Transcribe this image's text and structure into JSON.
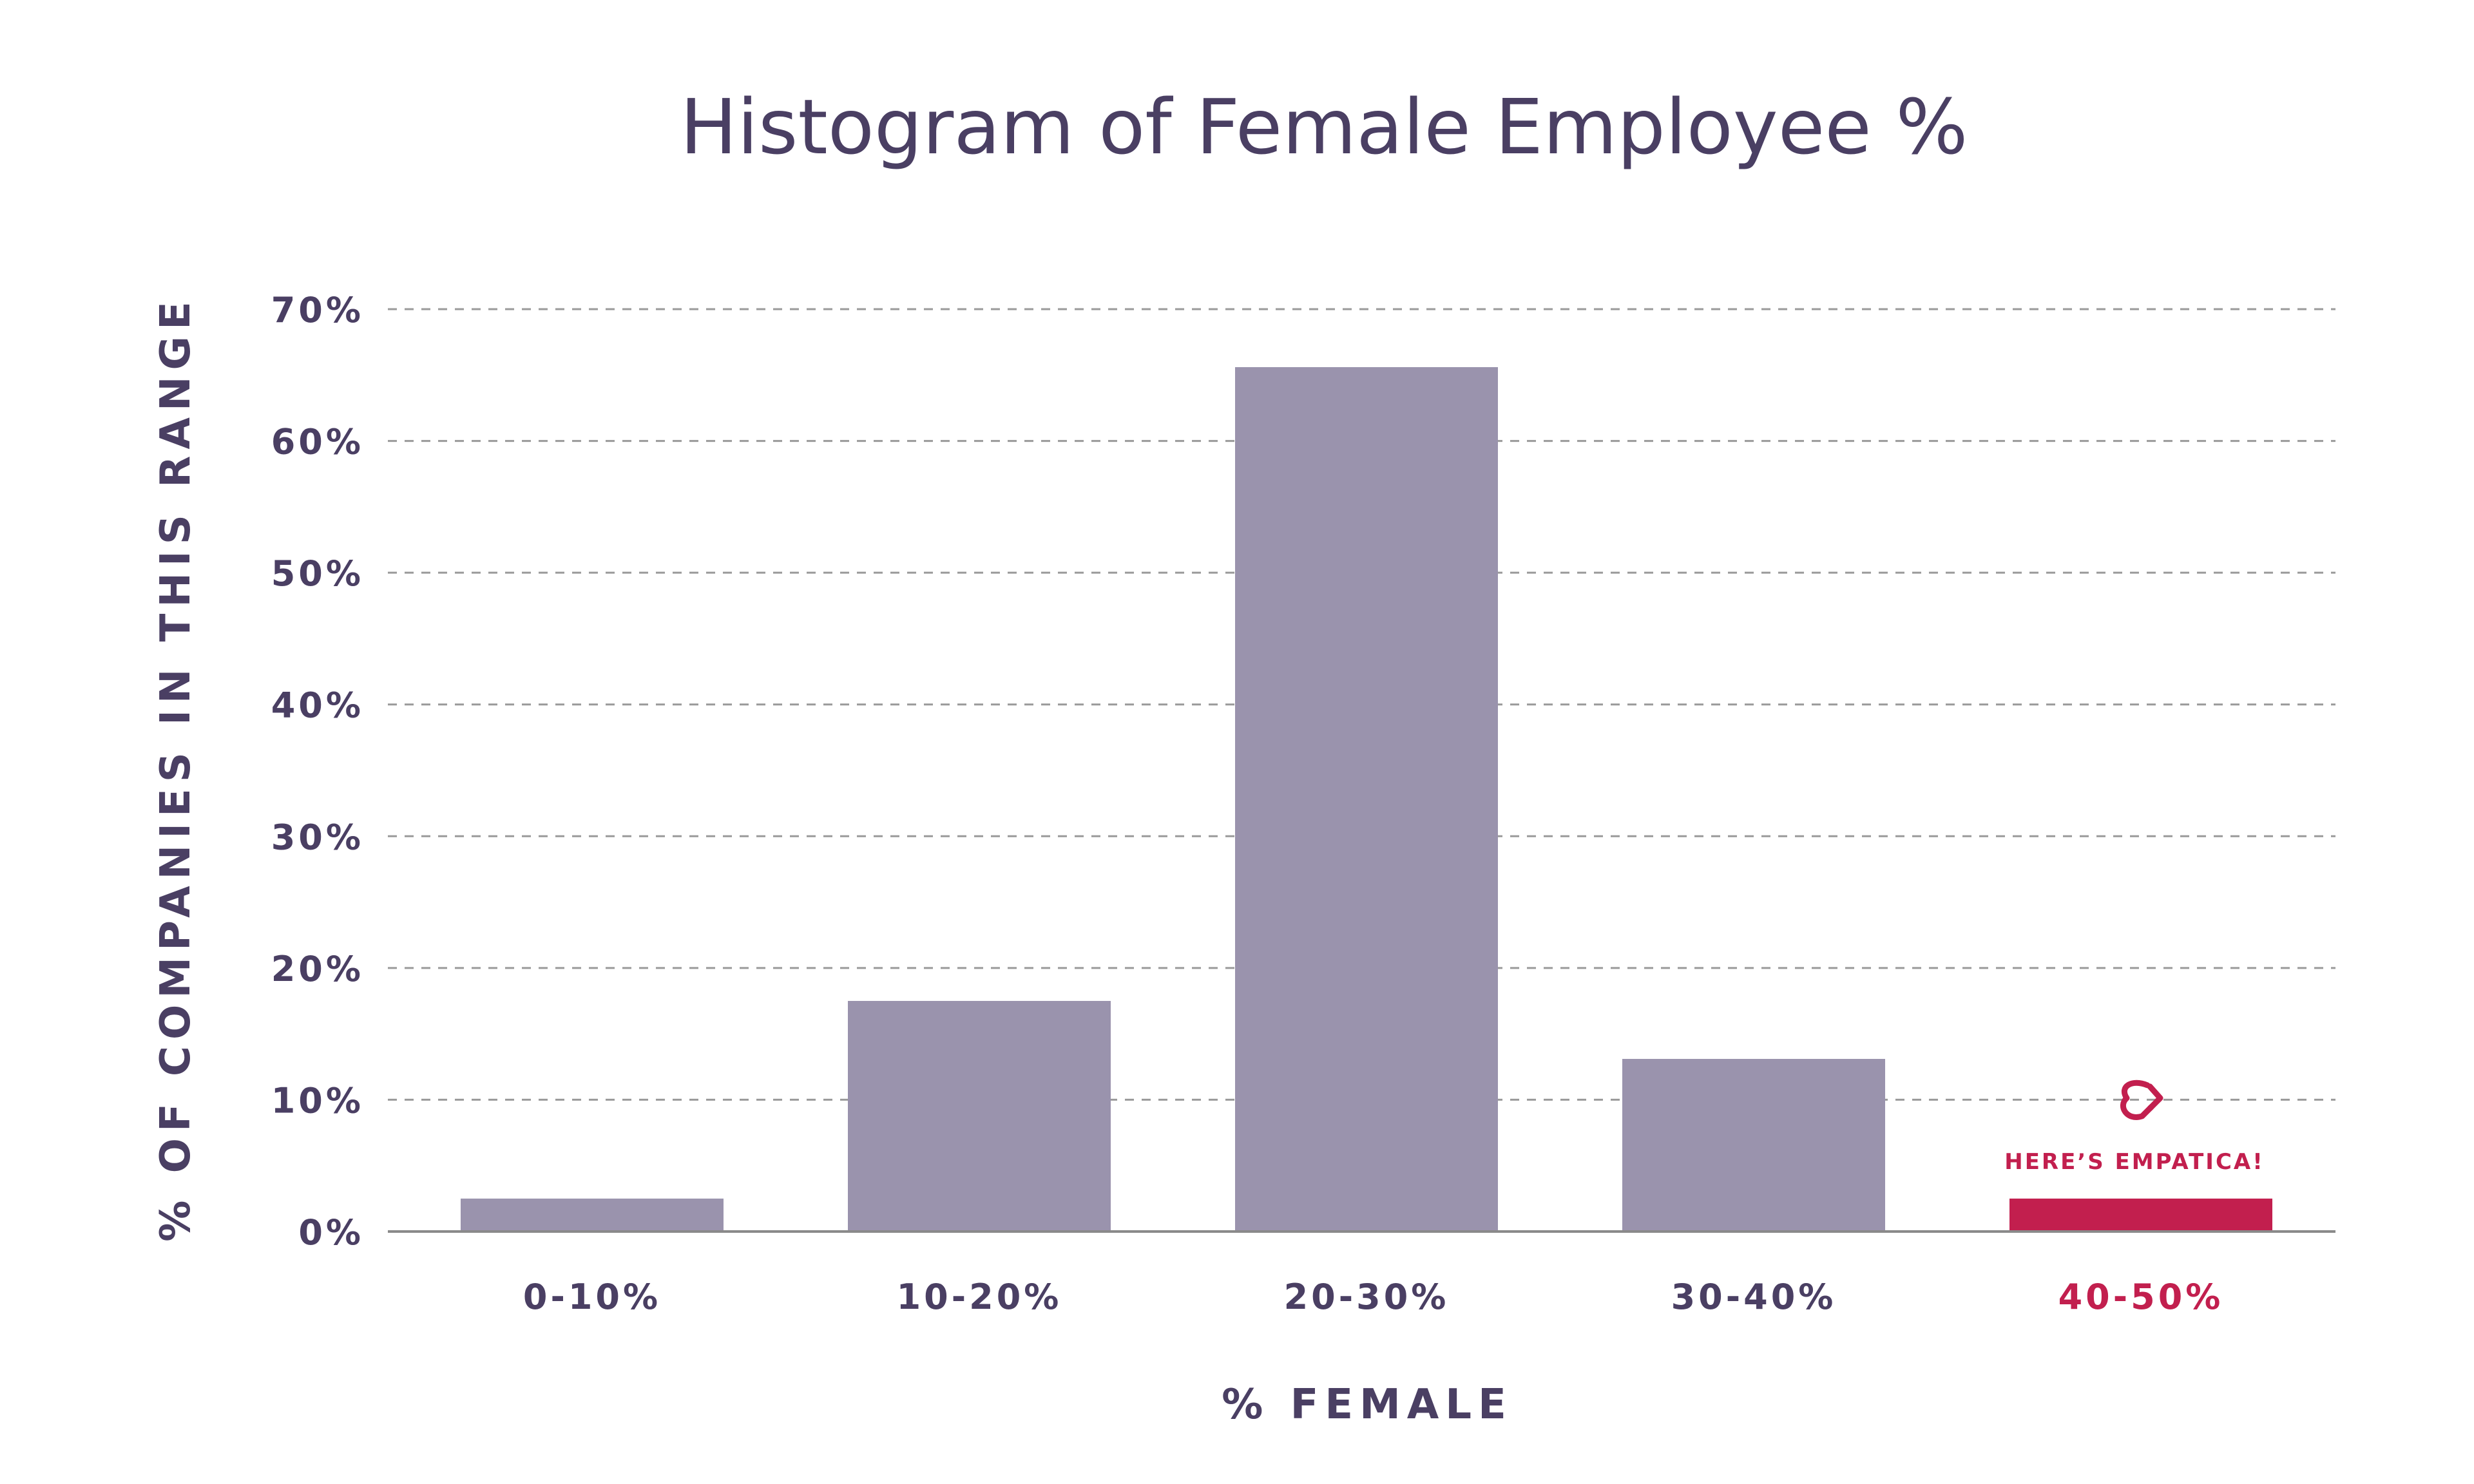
{
  "chart_data": {
    "type": "bar",
    "title": "Histogram of Female Employee %",
    "xlabel": "% FEMALE",
    "ylabel": "% OF COMPANIES IN THIS RANGE",
    "categories": [
      "0-10%",
      "10-20%",
      "20-30%",
      "30-40%",
      "40-50%"
    ],
    "values": [
      2.5,
      17.5,
      65.6,
      13.1,
      2.5
    ],
    "ylim": [
      0,
      70
    ],
    "yticks": [
      0,
      10,
      20,
      30,
      40,
      50,
      60,
      70
    ],
    "ytick_labels": [
      "0%",
      "10%",
      "20%",
      "30%",
      "40%",
      "50%",
      "60%",
      "70%"
    ],
    "grid": true,
    "highlight_index": 4,
    "annotation": {
      "text": "HERE’S EMPATICA!",
      "icon": "empatica-logo-icon",
      "category": "40-50%"
    },
    "colors": {
      "bar": "#9a93ad",
      "highlight": "#c21f4e",
      "text": "#4a3f63",
      "grid": "#9a9a9a"
    }
  }
}
